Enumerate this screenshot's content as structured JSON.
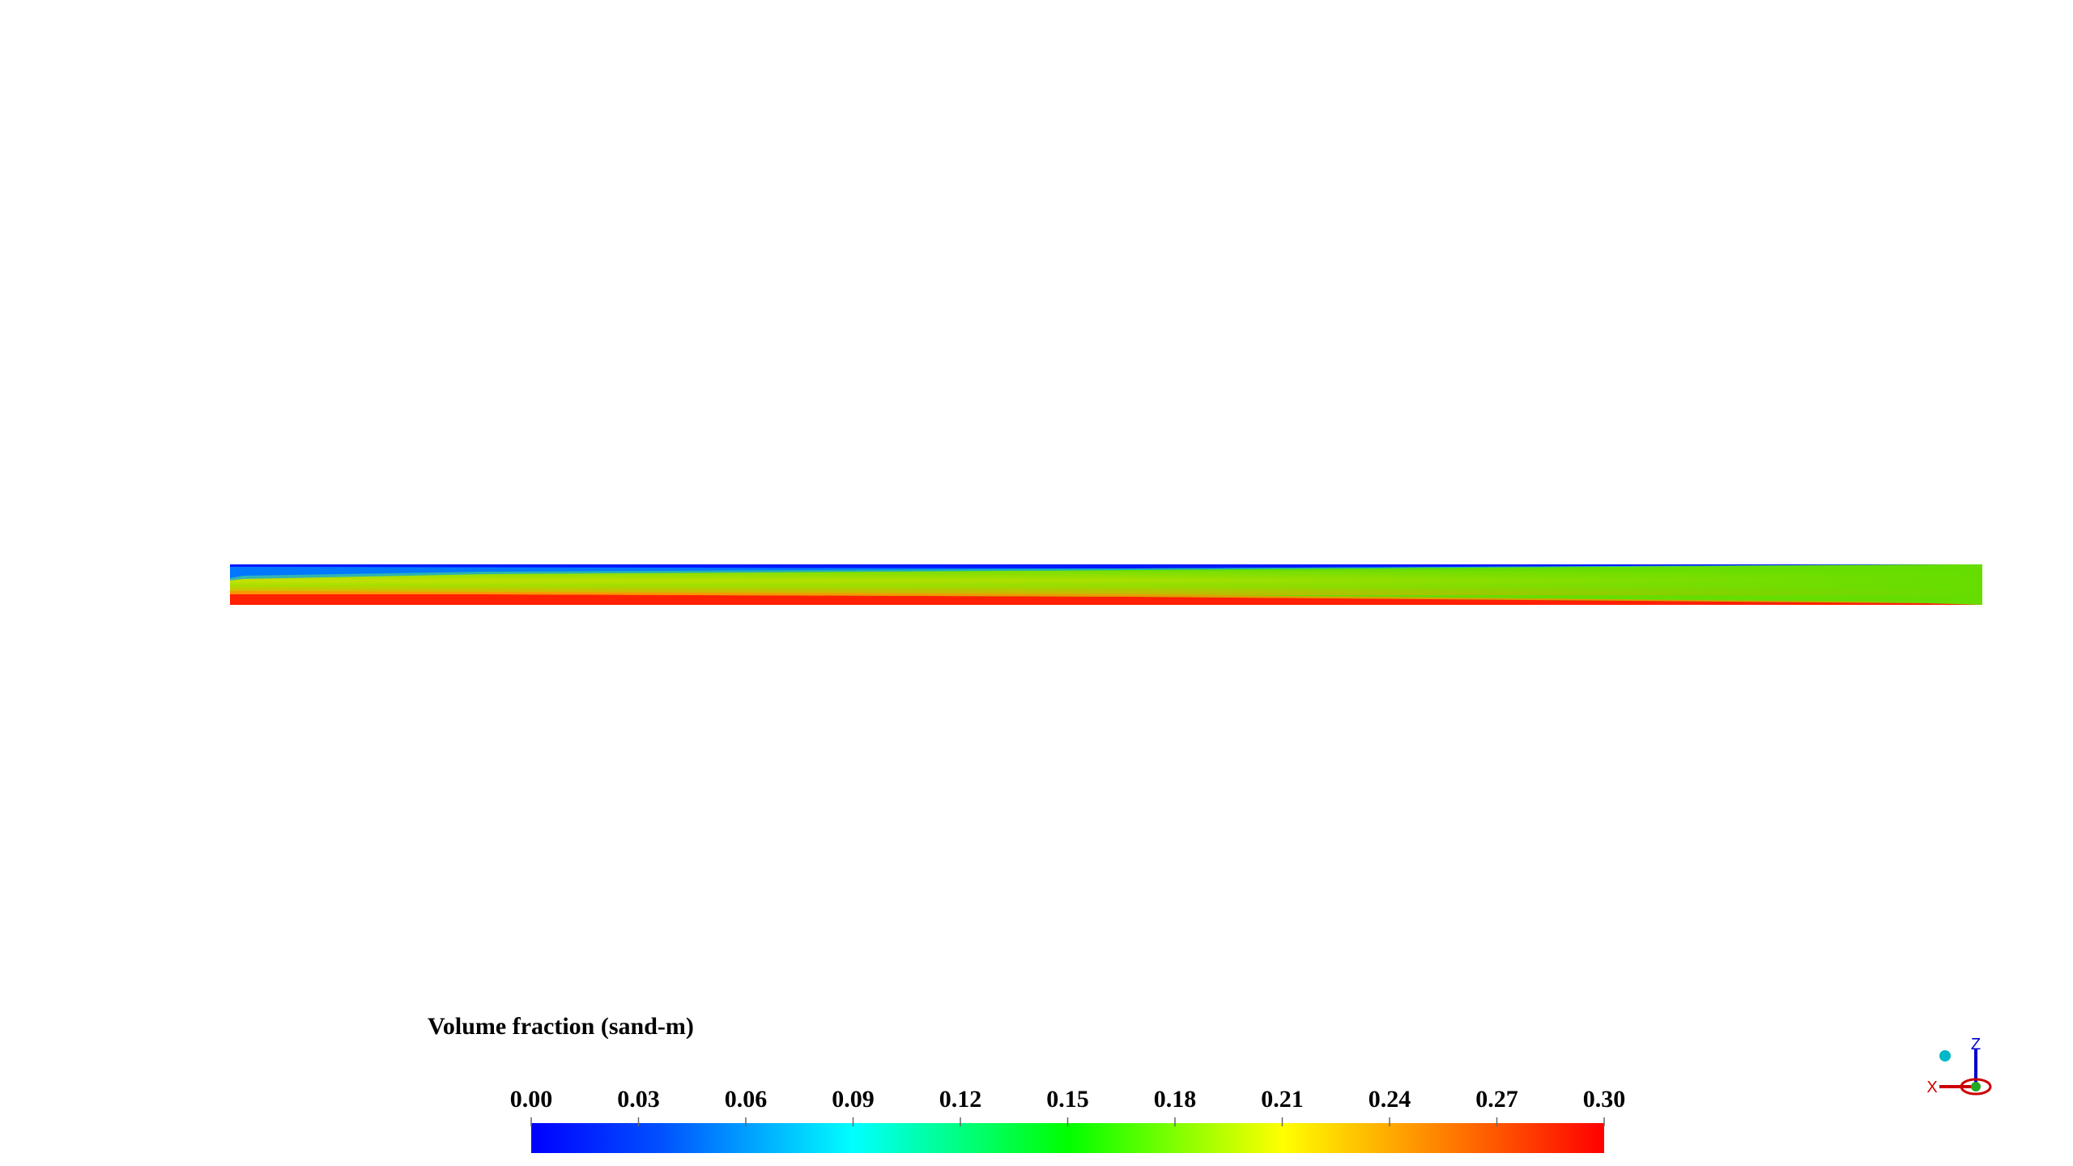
{
  "colorbar": {
    "title": "Volume fraction (sand-m)",
    "ticks": [
      {
        "value": 0,
        "label": "0.00"
      },
      {
        "value": 0.03,
        "label": "0.03"
      },
      {
        "value": 0.06,
        "label": "0.06"
      },
      {
        "value": 0.09,
        "label": "0.09"
      },
      {
        "value": 0.12,
        "label": "0.12"
      },
      {
        "value": 0.15,
        "label": "0.15"
      },
      {
        "value": 0.18,
        "label": "0.18"
      },
      {
        "value": 0.21,
        "label": "0.21"
      },
      {
        "value": 0.24,
        "label": "0.24"
      },
      {
        "value": 0.27,
        "label": "0.27"
      },
      {
        "value": 0.3,
        "label": "0.30"
      }
    ]
  },
  "triad": {
    "x": "X",
    "z": "Z"
  }
}
